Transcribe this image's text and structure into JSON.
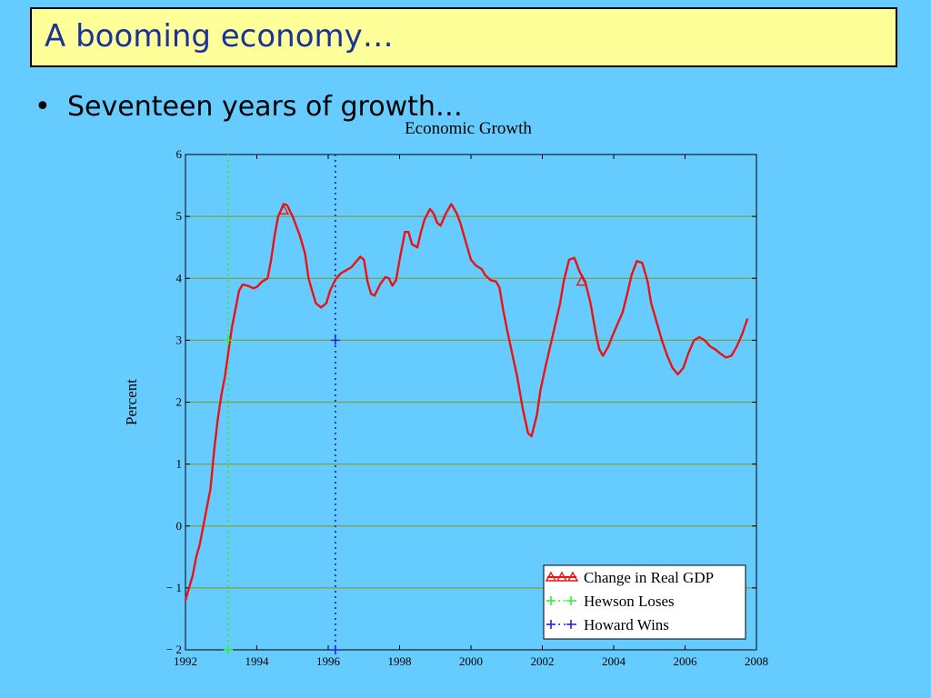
{
  "slide": {
    "title": "A booming economy…",
    "bullet": "Seventeen years of growth…"
  },
  "chart_data": {
    "type": "line",
    "title": "Economic Growth",
    "ylabel": "Percent",
    "xlabel": "",
    "xlim": [
      1992,
      2008
    ],
    "ylim": [
      -2,
      6
    ],
    "x_ticks": [
      "1992",
      "1994",
      "1996",
      "1998",
      "2000",
      "2002",
      "2004",
      "2006",
      "2008"
    ],
    "y_ticks": [
      "6",
      "5",
      "4",
      "3",
      "2",
      "1",
      "0",
      "− 1",
      "− 2"
    ],
    "grid": "horizontal",
    "grid_color": "#7f9f3f",
    "plot_background": "#66ccff",
    "legend_position": "bottom-right",
    "series": [
      {
        "name": "Change in Real GDP",
        "color": "#ee1111",
        "marker": "triangle",
        "points": [
          [
            1992.0,
            -1.2
          ],
          [
            1992.1,
            -1.0
          ],
          [
            1992.2,
            -0.8
          ],
          [
            1992.3,
            -0.5
          ],
          [
            1992.4,
            -0.3
          ],
          [
            1992.5,
            0.0
          ],
          [
            1992.6,
            0.3
          ],
          [
            1992.7,
            0.6
          ],
          [
            1992.8,
            1.2
          ],
          [
            1992.9,
            1.7
          ],
          [
            1993.0,
            2.1
          ],
          [
            1993.1,
            2.4
          ],
          [
            1993.2,
            2.8
          ],
          [
            1993.3,
            3.2
          ],
          [
            1993.4,
            3.5
          ],
          [
            1993.5,
            3.8
          ],
          [
            1993.6,
            3.9
          ],
          [
            1993.75,
            3.88
          ],
          [
            1993.9,
            3.84
          ],
          [
            1994.0,
            3.86
          ],
          [
            1994.15,
            3.95
          ],
          [
            1994.3,
            4.0
          ],
          [
            1994.4,
            4.3
          ],
          [
            1994.5,
            4.7
          ],
          [
            1994.6,
            5.0
          ],
          [
            1994.75,
            5.2
          ],
          [
            1994.85,
            5.18
          ],
          [
            1995.0,
            5.0
          ],
          [
            1995.1,
            4.85
          ],
          [
            1995.2,
            4.7
          ],
          [
            1995.35,
            4.4
          ],
          [
            1995.45,
            4.0
          ],
          [
            1995.55,
            3.8
          ],
          [
            1995.65,
            3.6
          ],
          [
            1995.8,
            3.53
          ],
          [
            1995.95,
            3.6
          ],
          [
            1996.05,
            3.8
          ],
          [
            1996.2,
            3.98
          ],
          [
            1996.35,
            4.08
          ],
          [
            1996.5,
            4.13
          ],
          [
            1996.65,
            4.18
          ],
          [
            1996.8,
            4.28
          ],
          [
            1996.9,
            4.35
          ],
          [
            1997.0,
            4.3
          ],
          [
            1997.1,
            3.95
          ],
          [
            1997.2,
            3.75
          ],
          [
            1997.3,
            3.72
          ],
          [
            1997.45,
            3.9
          ],
          [
            1997.6,
            4.02
          ],
          [
            1997.7,
            4.0
          ],
          [
            1997.8,
            3.88
          ],
          [
            1997.9,
            3.97
          ],
          [
            1998.0,
            4.3
          ],
          [
            1998.15,
            4.75
          ],
          [
            1998.25,
            4.75
          ],
          [
            1998.35,
            4.55
          ],
          [
            1998.5,
            4.5
          ],
          [
            1998.6,
            4.75
          ],
          [
            1998.7,
            4.95
          ],
          [
            1998.85,
            5.12
          ],
          [
            1998.95,
            5.05
          ],
          [
            1999.05,
            4.9
          ],
          [
            1999.15,
            4.85
          ],
          [
            1999.3,
            5.05
          ],
          [
            1999.45,
            5.2
          ],
          [
            1999.6,
            5.05
          ],
          [
            1999.7,
            4.9
          ],
          [
            1999.85,
            4.6
          ],
          [
            2000.0,
            4.3
          ],
          [
            2000.15,
            4.2
          ],
          [
            2000.3,
            4.15
          ],
          [
            2000.4,
            4.05
          ],
          [
            2000.55,
            3.97
          ],
          [
            2000.7,
            3.95
          ],
          [
            2000.8,
            3.85
          ],
          [
            2000.9,
            3.5
          ],
          [
            2001.0,
            3.2
          ],
          [
            2001.15,
            2.8
          ],
          [
            2001.3,
            2.4
          ],
          [
            2001.45,
            1.9
          ],
          [
            2001.6,
            1.5
          ],
          [
            2001.7,
            1.45
          ],
          [
            2001.85,
            1.8
          ],
          [
            2001.95,
            2.2
          ],
          [
            2002.1,
            2.6
          ],
          [
            2002.3,
            3.1
          ],
          [
            2002.5,
            3.6
          ],
          [
            2002.6,
            3.95
          ],
          [
            2002.75,
            4.3
          ],
          [
            2002.9,
            4.33
          ],
          [
            2003.05,
            4.1
          ],
          [
            2003.2,
            3.95
          ],
          [
            2003.35,
            3.6
          ],
          [
            2003.5,
            3.1
          ],
          [
            2003.6,
            2.85
          ],
          [
            2003.7,
            2.75
          ],
          [
            2003.85,
            2.9
          ],
          [
            2003.95,
            3.05
          ],
          [
            2004.1,
            3.25
          ],
          [
            2004.25,
            3.45
          ],
          [
            2004.4,
            3.8
          ],
          [
            2004.5,
            4.05
          ],
          [
            2004.65,
            4.28
          ],
          [
            2004.8,
            4.25
          ],
          [
            2004.95,
            3.95
          ],
          [
            2005.05,
            3.6
          ],
          [
            2005.2,
            3.3
          ],
          [
            2005.35,
            3.0
          ],
          [
            2005.5,
            2.75
          ],
          [
            2005.65,
            2.55
          ],
          [
            2005.8,
            2.45
          ],
          [
            2005.95,
            2.55
          ],
          [
            2006.1,
            2.8
          ],
          [
            2006.25,
            3.0
          ],
          [
            2006.4,
            3.05
          ],
          [
            2006.55,
            3.0
          ],
          [
            2006.7,
            2.9
          ],
          [
            2006.85,
            2.85
          ],
          [
            2007.0,
            2.78
          ],
          [
            2007.15,
            2.72
          ],
          [
            2007.3,
            2.75
          ],
          [
            2007.45,
            2.9
          ],
          [
            2007.6,
            3.1
          ],
          [
            2007.75,
            3.35
          ]
        ],
        "marker_points": [
          [
            1994.75,
            5.1
          ],
          [
            2003.1,
            3.95
          ]
        ]
      },
      {
        "name": "Hewson Loses",
        "color": "#33ee33",
        "marker": "plus",
        "x": 1993.2,
        "marker_points": [
          [
            1993.2,
            3.0
          ],
          [
            1993.2,
            -2.0
          ]
        ]
      },
      {
        "name": "Howard Wins",
        "color": "#2222dd",
        "marker": "plus",
        "x": 1996.2,
        "marker_points": [
          [
            1996.2,
            3.0
          ],
          [
            1996.2,
            -2.0
          ]
        ]
      }
    ]
  }
}
